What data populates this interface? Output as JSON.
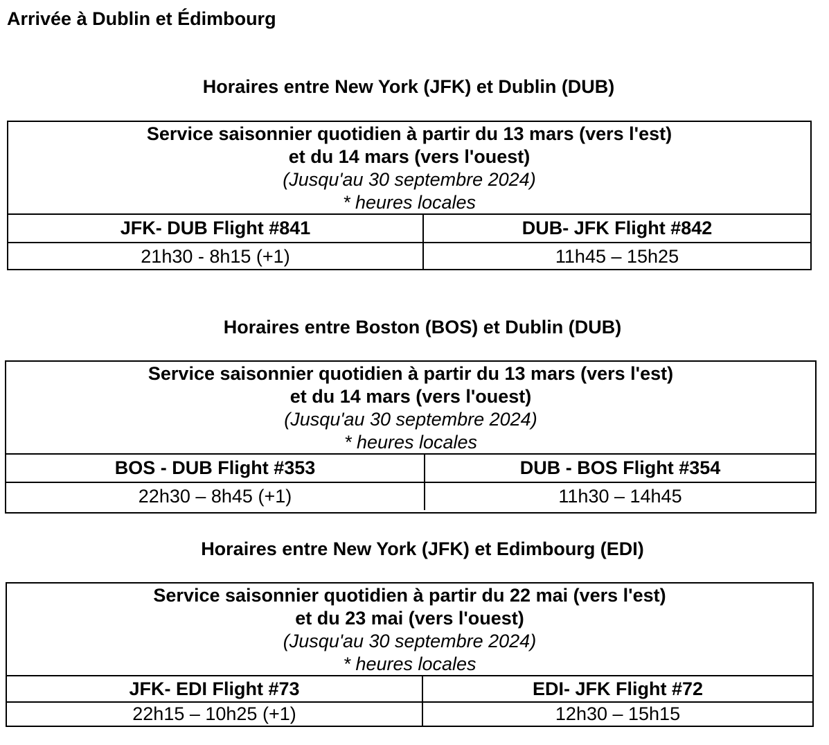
{
  "page": {
    "title": "Arrivée à Dublin et Édimbourg"
  },
  "sections": [
    {
      "title": "Horaires entre New York (JFK) et Dublin (DUB)",
      "service_line1": "Service saisonnier quotidien à partir du 13 mars (vers l'est)",
      "service_line2": "et du 14 mars (vers l'ouest)",
      "validity": "(Jusqu'au 30 septembre 2024)",
      "note": "* heures locales",
      "left_flight": "JFK- DUB Flight #841",
      "right_flight": "DUB- JFK Flight #842",
      "left_times": "21h30 - 8h15 (+1)",
      "right_times": "11h45 – 15h25"
    },
    {
      "title": "Horaires entre Boston (BOS) et Dublin (DUB)",
      "service_line1": "Service saisonnier quotidien à partir du 13 mars (vers l'est)",
      "service_line2": "et du 14 mars (vers l'ouest)",
      "validity": "(Jusqu'au 30 septembre 2024)",
      "note": "* heures locales",
      "left_flight": "BOS - DUB Flight #353",
      "right_flight": "DUB - BOS Flight #354",
      "left_times": "22h30 – 8h45 (+1)",
      "right_times": "11h30 – 14h45"
    },
    {
      "title": "Horaires entre New York (JFK) et Edimbourg (EDI)",
      "service_line1": "Service saisonnier quotidien à partir du 22 mai (vers l'est)",
      "service_line2": "et du 23 mai (vers l'ouest)",
      "validity": "(Jusqu'au 30 septembre 2024)",
      "note": "* heures locales",
      "left_flight": "JFK- EDI Flight #73",
      "right_flight": "EDI- JFK Flight #72",
      "left_times": "22h15 – 10h25 (+1)",
      "right_times": "12h30 – 15h15"
    }
  ]
}
